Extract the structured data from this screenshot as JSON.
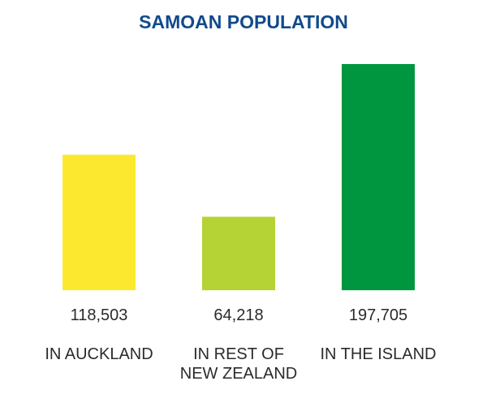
{
  "chart_data": {
    "type": "bar",
    "title": "SAMOAN POPULATION",
    "categories": [
      "IN AUCKLAND",
      "IN REST OF\nNEW ZEALAND",
      "IN THE ISLAND"
    ],
    "values": [
      118503,
      64218,
      197705
    ],
    "value_labels": [
      "118,503",
      "64,218",
      "197,705"
    ],
    "colors": [
      "#fce92f",
      "#b5d334",
      "#009640"
    ]
  }
}
